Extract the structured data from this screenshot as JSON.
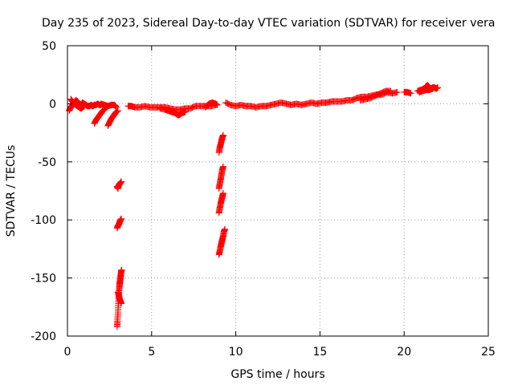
{
  "chart_data": {
    "type": "scatter",
    "title": "Day 235 of 2023, Sidereal Day-to-day VTEC variation (SDTVAR) for receiver vera",
    "xlabel": "GPS time / hours",
    "ylabel": "SDTVAR / TECUs",
    "xlim": [
      0,
      25
    ],
    "ylim": [
      -200,
      50
    ],
    "xticks": [
      0,
      5,
      10,
      15,
      20,
      25
    ],
    "yticks": [
      -200,
      -150,
      -100,
      -50,
      0,
      50
    ],
    "grid": true,
    "marker": "+",
    "series": [
      {
        "name": "SDTVAR",
        "color": "#ff0000",
        "tracks": [
          [
            [
              0.1,
              -6
            ],
            [
              0.2,
              -3
            ],
            [
              0.3,
              -1
            ],
            [
              0.4,
              1
            ],
            [
              0.5,
              3
            ],
            [
              0.6,
              2
            ],
            [
              0.7,
              0
            ],
            [
              0.8,
              -1
            ],
            [
              0.9,
              1
            ],
            [
              1.0,
              0
            ],
            [
              1.1,
              -1
            ],
            [
              1.2,
              -2
            ],
            [
              1.3,
              -2
            ],
            [
              1.4,
              -1
            ],
            [
              1.5,
              -2
            ],
            [
              1.6,
              -1
            ],
            [
              1.7,
              -1
            ],
            [
              1.8,
              0
            ],
            [
              1.9,
              -1
            ],
            [
              2.0,
              -1
            ]
          ],
          [
            [
              0.2,
              4
            ],
            [
              0.3,
              2
            ],
            [
              0.4,
              0
            ],
            [
              0.5,
              -1
            ],
            [
              0.6,
              -2
            ],
            [
              0.7,
              -3
            ],
            [
              0.8,
              -4
            ],
            [
              0.9,
              -3
            ],
            [
              1.0,
              -2
            ]
          ],
          [
            [
              2.0,
              0
            ],
            [
              2.2,
              -1
            ],
            [
              2.4,
              -2
            ],
            [
              2.6,
              -1
            ],
            [
              2.8,
              -1
            ],
            [
              2.9,
              -3
            ]
          ],
          [
            [
              1.6,
              -17
            ],
            [
              1.7,
              -14
            ],
            [
              1.8,
              -12
            ],
            [
              1.9,
              -10
            ],
            [
              2.0,
              -8
            ],
            [
              2.1,
              -6
            ],
            [
              2.2,
              -5
            ],
            [
              2.3,
              -3
            ]
          ],
          [
            [
              2.4,
              -19
            ],
            [
              2.5,
              -16
            ],
            [
              2.6,
              -13
            ],
            [
              2.7,
              -11
            ],
            [
              2.8,
              -9
            ],
            [
              2.9,
              -7
            ],
            [
              3.0,
              -6
            ]
          ],
          [
            [
              2.95,
              -71
            ],
            [
              3.0,
              -73
            ],
            [
              3.05,
              -70
            ],
            [
              3.1,
              -69
            ],
            [
              3.15,
              -68
            ],
            [
              3.2,
              -67
            ]
          ],
          [
            [
              2.95,
              -107
            ],
            [
              3.0,
              -105
            ],
            [
              3.05,
              -104
            ],
            [
              3.1,
              -102
            ],
            [
              3.15,
              -100
            ],
            [
              3.2,
              -99
            ]
          ],
          [
            [
              2.95,
              -192
            ],
            [
              2.97,
              -187
            ],
            [
              3.0,
              -180
            ],
            [
              3.02,
              -172
            ],
            [
              3.05,
              -165
            ],
            [
              3.07,
              -160
            ],
            [
              3.1,
              -156
            ],
            [
              3.12,
              -153
            ],
            [
              3.15,
              -150
            ],
            [
              3.17,
              -147
            ],
            [
              3.2,
              -144
            ],
            [
              3.22,
              -143
            ]
          ],
          [
            [
              3.0,
              -162
            ],
            [
              3.05,
              -165
            ],
            [
              3.1,
              -168
            ],
            [
              3.15,
              -170
            ],
            [
              3.2,
              -172
            ]
          ],
          [
            [
              3.6,
              -2
            ],
            [
              3.8,
              -2
            ],
            [
              4.0,
              -3
            ],
            [
              4.3,
              -3
            ],
            [
              4.6,
              -2
            ],
            [
              4.9,
              -3
            ],
            [
              5.2,
              -3
            ],
            [
              5.5,
              -3
            ],
            [
              5.8,
              -3
            ],
            [
              6.1,
              -4
            ],
            [
              6.4,
              -5
            ],
            [
              6.7,
              -5
            ],
            [
              7.0,
              -4
            ],
            [
              7.3,
              -4
            ],
            [
              7.6,
              -2
            ],
            [
              7.9,
              -2
            ],
            [
              8.2,
              -2
            ],
            [
              8.5,
              -2
            ],
            [
              8.8,
              -1
            ]
          ],
          [
            [
              5.5,
              -4
            ],
            [
              5.8,
              -5
            ],
            [
              6.0,
              -6
            ],
            [
              6.2,
              -7
            ],
            [
              6.4,
              -8
            ],
            [
              6.6,
              -10
            ],
            [
              6.8,
              -8
            ],
            [
              7.0,
              -7
            ]
          ],
          [
            [
              8.2,
              -3
            ],
            [
              8.4,
              0
            ],
            [
              8.6,
              1
            ],
            [
              8.8,
              0
            ],
            [
              8.9,
              -1
            ]
          ],
          [
            [
              9.0,
              -130
            ],
            [
              9.05,
              -127
            ],
            [
              9.1,
              -123
            ],
            [
              9.15,
              -120
            ],
            [
              9.2,
              -117
            ],
            [
              9.25,
              -114
            ],
            [
              9.3,
              -110
            ],
            [
              9.35,
              -108
            ]
          ],
          [
            [
              9.0,
              -94
            ],
            [
              9.05,
              -90
            ],
            [
              9.1,
              -86
            ],
            [
              9.15,
              -83
            ],
            [
              9.2,
              -80
            ],
            [
              9.25,
              -77
            ]
          ],
          [
            [
              9.0,
              -73
            ],
            [
              9.05,
              -69
            ],
            [
              9.1,
              -65
            ],
            [
              9.15,
              -61
            ],
            [
              9.2,
              -57
            ],
            [
              9.25,
              -54
            ]
          ],
          [
            [
              9.0,
              -42
            ],
            [
              9.05,
              -38
            ],
            [
              9.1,
              -35
            ],
            [
              9.15,
              -32
            ],
            [
              9.2,
              -29
            ],
            [
              9.25,
              -27
            ]
          ],
          [
            [
              9.4,
              1
            ],
            [
              9.7,
              -1
            ],
            [
              10.0,
              -2
            ],
            [
              10.3,
              -1
            ],
            [
              10.6,
              -2
            ],
            [
              10.9,
              -2
            ],
            [
              11.2,
              -3
            ],
            [
              11.5,
              -2
            ],
            [
              11.8,
              -2
            ],
            [
              12.1,
              -1
            ],
            [
              12.4,
              0
            ],
            [
              12.7,
              1
            ],
            [
              13.0,
              0
            ],
            [
              13.3,
              -1
            ],
            [
              13.6,
              0
            ],
            [
              13.9,
              -1
            ],
            [
              14.2,
              0
            ],
            [
              14.5,
              1
            ],
            [
              14.8,
              0
            ],
            [
              15.1,
              1
            ],
            [
              15.4,
              1
            ],
            [
              15.7,
              2
            ],
            [
              16.0,
              2
            ],
            [
              16.3,
              2
            ],
            [
              16.6,
              3
            ],
            [
              16.9,
              3
            ],
            [
              17.2,
              5
            ],
            [
              17.5,
              6
            ],
            [
              17.8,
              6
            ],
            [
              18.1,
              7
            ],
            [
              18.4,
              8
            ],
            [
              18.7,
              8
            ],
            [
              19.0,
              10
            ],
            [
              19.3,
              9
            ],
            [
              19.6,
              10
            ]
          ],
          [
            [
              17.4,
              3
            ],
            [
              17.7,
              4
            ],
            [
              18.0,
              5
            ],
            [
              18.3,
              7
            ],
            [
              18.6,
              9
            ],
            [
              18.9,
              11
            ],
            [
              19.2,
              11
            ]
          ],
          [
            [
              20.0,
              10
            ],
            [
              20.2,
              10
            ],
            [
              20.4,
              9
            ]
          ],
          [
            [
              20.8,
              11
            ],
            [
              21.0,
              12
            ],
            [
              21.2,
              13
            ],
            [
              21.3,
              15
            ],
            [
              21.4,
              16
            ],
            [
              21.5,
              14
            ],
            [
              21.6,
              13
            ],
            [
              21.7,
              14
            ],
            [
              21.8,
              14
            ],
            [
              21.9,
              13
            ],
            [
              22.0,
              14
            ]
          ],
          [
            [
              20.9,
              10
            ],
            [
              21.1,
              11
            ],
            [
              21.3,
              12
            ],
            [
              21.5,
              12
            ],
            [
              21.7,
              13
            ]
          ]
        ]
      }
    ]
  }
}
